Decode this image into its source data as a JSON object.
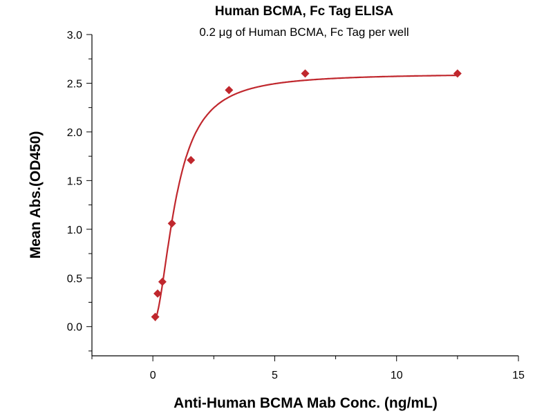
{
  "chart_data": {
    "type": "scatter",
    "title": "Human BCMA, Fc Tag ELISA",
    "subtitle": "0.2 μg of Human BCMA, Fc Tag per well",
    "xlabel": "Anti-Human BCMA Mab Conc. (ng/mL)",
    "ylabel": "Mean Abs.(OD450)",
    "xlim": [
      -2.5,
      15
    ],
    "ylim": [
      -0.3,
      3.0
    ],
    "xticks": [
      0,
      5,
      10,
      15
    ],
    "xtick_labels": [
      "0",
      "5",
      "10",
      "15"
    ],
    "yticks": [
      0.0,
      0.5,
      1.0,
      1.5,
      2.0,
      2.5,
      3.0
    ],
    "ytick_labels": [
      "0.0",
      "0.5",
      "1.0",
      "1.5",
      "2.0",
      "2.5",
      "3.0"
    ],
    "grid": false,
    "series": [
      {
        "name": "Mean Abs.",
        "x": [
          0.098,
          0.195,
          0.39,
          0.78,
          1.5625,
          3.125,
          6.25,
          12.5
        ],
        "y": [
          0.1,
          0.34,
          0.46,
          1.06,
          1.71,
          2.43,
          2.6,
          2.6
        ],
        "color": "#c0272d",
        "marker": "diamond"
      }
    ],
    "fit": {
      "model": "4PL",
      "bottom": 0.03,
      "top": 2.6,
      "ec50": 0.95,
      "hill": 1.9,
      "color": "#c0272d"
    }
  }
}
